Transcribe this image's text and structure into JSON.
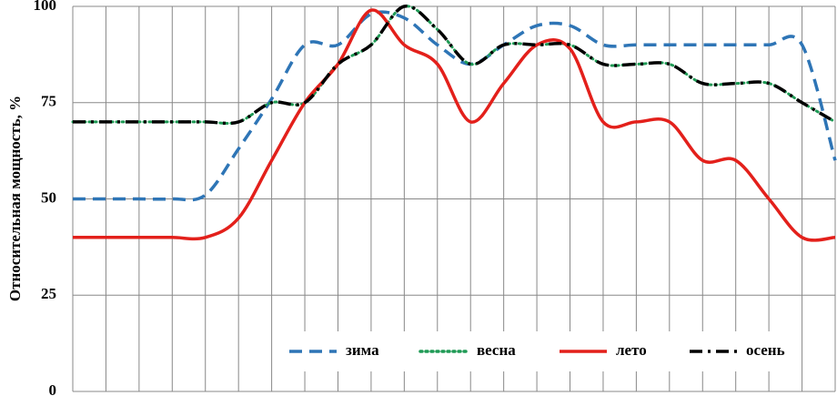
{
  "chart_data": {
    "type": "line",
    "y_label": "Относительная мощность, %",
    "categories": [
      null,
      null,
      null,
      null,
      null,
      null,
      null,
      null,
      null,
      null,
      null,
      null,
      null,
      null,
      null,
      null,
      null,
      null,
      null,
      null,
      null,
      null,
      null,
      null
    ],
    "series": [
      {
        "name": "зима",
        "color": "#2e75b6",
        "dash": "dash",
        "values": [
          50,
          50,
          50,
          50,
          51,
          63,
          76,
          90,
          90,
          98,
          97,
          90,
          85,
          90,
          95,
          95,
          90,
          90,
          90,
          90,
          90,
          90,
          90,
          60
        ]
      },
      {
        "name": "весна",
        "color": "#1f9a55",
        "dash": "dot",
        "values": [
          70,
          70,
          70,
          70,
          70,
          70,
          75,
          75,
          85,
          90,
          100,
          94,
          85,
          90,
          90,
          90,
          85,
          85,
          85,
          80,
          80,
          80,
          75,
          70
        ]
      },
      {
        "name": "лето",
        "color": "#e3201b",
        "dash": "solid",
        "values": [
          40,
          40,
          40,
          40,
          40,
          45,
          60,
          75,
          85,
          99,
          90,
          85,
          70,
          80,
          90,
          89,
          70,
          70,
          70,
          60,
          60,
          50,
          40,
          40
        ]
      },
      {
        "name": "осень",
        "color": "#000000",
        "dash": "dashdot",
        "values": [
          70,
          70,
          70,
          70,
          70,
          70,
          75,
          75,
          85,
          90,
          100,
          94,
          85,
          90,
          90,
          90,
          85,
          85,
          85,
          80,
          80,
          80,
          75,
          70
        ]
      }
    ],
    "ylim": [
      0,
      100
    ],
    "yticks": [
      0,
      25,
      50,
      75,
      100
    ],
    "grid": true,
    "legend": "bottom"
  }
}
